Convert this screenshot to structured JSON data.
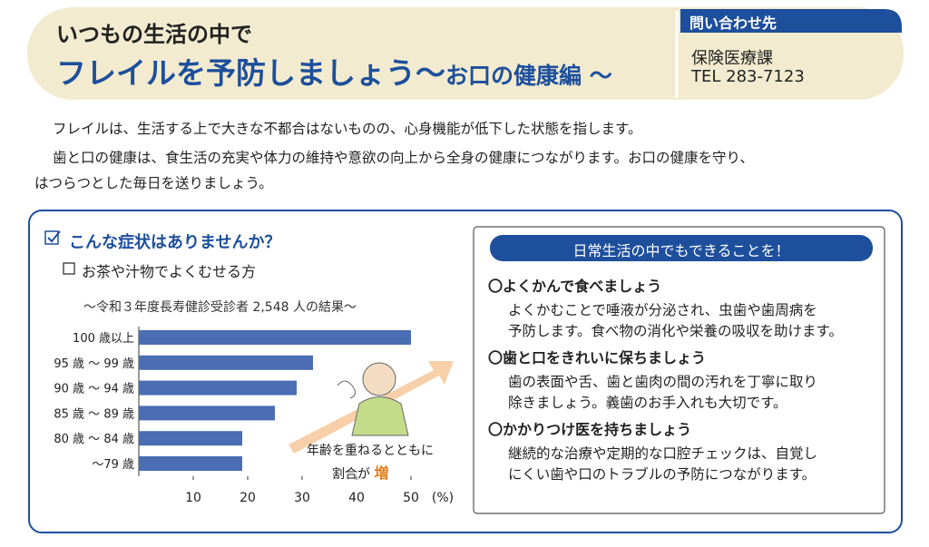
{
  "header": {
    "subtitle": "いつもの生活の中で",
    "title": "フレイルを予防しましょう～",
    "title_suffix": "お口の健康編 ～",
    "contact": {
      "label": "問い合わせ先",
      "dept": "保険医療課",
      "tel": "TEL 283-7123"
    }
  },
  "intro": [
    "フレイルは、生活する上で大きな不都合はないものの、心身機能が低下した状態を指します。",
    "歯と口の健康は、食生活の充実や体力の維持や意欲の向上から全身の健康につながります。お口の健康を守り、",
    "はつらつとした毎日を送りましょう。"
  ],
  "symptoms": {
    "heading": "こんな症状はありませんか？",
    "item": "お茶や汁物でよくむせる方"
  },
  "chart": {
    "type": "bar",
    "orientation": "horizontal",
    "title": "～令和３年度長寿健診受診者 2,548 人の結果～",
    "categories": [
      "100 歳以上",
      "95 歳 ～ 99 歳",
      "90 歳 ～ 94 歳",
      "85 歳 ～ 89 歳",
      "80 歳 ～ 84 歳",
      "～79 歳"
    ],
    "values": [
      50,
      32,
      29,
      25,
      19,
      19
    ],
    "color": "#4a6db3",
    "xlim": [
      0,
      55
    ],
    "xticks": [
      10,
      20,
      30,
      40,
      50
    ],
    "unit": "(%)",
    "annotation": [
      "年齢を重ねるとともに",
      "割合が"
    ],
    "annotation_emphasis": "増"
  },
  "tips": {
    "heading": "日常生活の中でもできることを！",
    "items": [
      {
        "title": "〇よくかんで食べましょう",
        "lines": [
          "よくかむことで唾液が分泌され、虫歯や歯周病を",
          "予防します。食べ物の消化や栄養の吸収を助けます。"
        ]
      },
      {
        "title": "〇歯と口をきれいに保ちましょう",
        "lines": [
          "歯の表面や舌、歯と歯肉の間の汚れを丁寧に取り",
          "除きましょう。義歯のお手入れも大切です。"
        ]
      },
      {
        "title": "〇かかりつけ医を持ちましょう",
        "lines": [
          "継続的な治療や定期的な口腔チェックは、自覚し",
          "にくい歯や口のトラブルの予防につながります。"
        ]
      }
    ]
  }
}
